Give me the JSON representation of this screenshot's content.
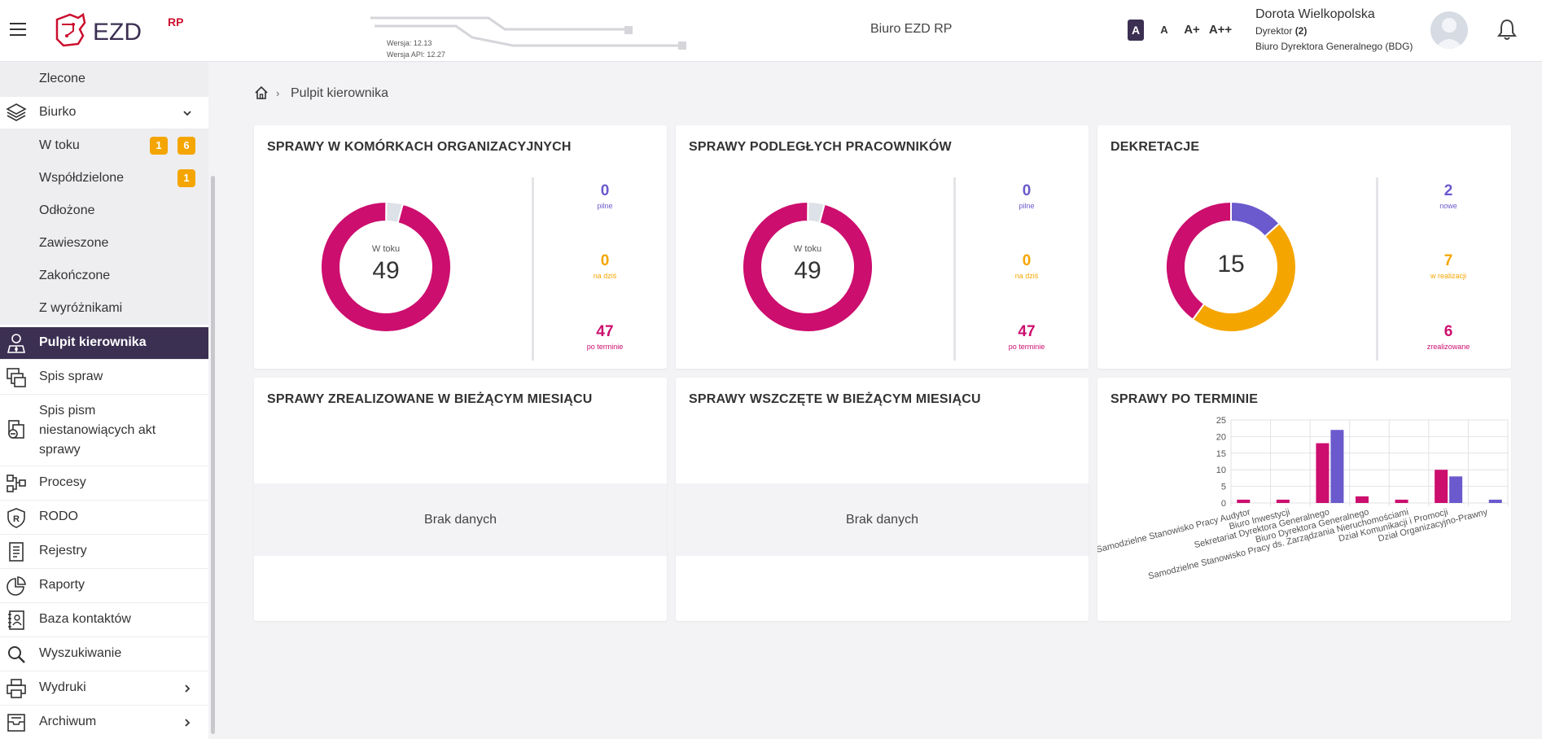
{
  "header": {
    "app_title": "Biuro EZD RP",
    "logo_text": "EZD",
    "logo_sup": "RP",
    "version": "Wersja: 12.13",
    "api_version": "Wersja API: 12.27",
    "font_sizes": [
      "A",
      "A",
      "A+",
      "A++"
    ],
    "user": {
      "name": "Dorota Wielkopolska",
      "role_prefix": "Dyrektor ",
      "role_count": "(2)",
      "department": "Biuro Dyrektora Generalnego (BDG)"
    }
  },
  "sidebar": {
    "zlecone": "Zlecone",
    "biurko": "Biurko",
    "sub_items": [
      {
        "label": "W toku",
        "badges": [
          "1",
          "6"
        ]
      },
      {
        "label": "Współdzielone",
        "badges": [
          "1"
        ]
      },
      {
        "label": "Odłożone"
      },
      {
        "label": "Zawieszone"
      },
      {
        "label": "Zakończone"
      },
      {
        "label": "Z wyróżnikami"
      }
    ],
    "items": [
      {
        "label": "Pulpit kierownika",
        "icon": "manager-icon"
      },
      {
        "label": "Spis spraw",
        "icon": "cases-list-icon"
      },
      {
        "label": "Spis pism niestanowiących akt sprawy",
        "icon": "documents-icon"
      },
      {
        "label": "Procesy",
        "icon": "process-icon"
      },
      {
        "label": "RODO",
        "icon": "rodo-shield-icon"
      },
      {
        "label": "Rejestry",
        "icon": "registry-icon"
      },
      {
        "label": "Raporty",
        "icon": "pie-chart-icon"
      },
      {
        "label": "Baza kontaktów",
        "icon": "contacts-book-icon"
      },
      {
        "label": "Wyszukiwanie",
        "icon": "search-icon"
      },
      {
        "label": "Wydruki",
        "icon": "printer-icon"
      },
      {
        "label": "Archiwum",
        "icon": "archive-icon"
      }
    ]
  },
  "breadcrumb": {
    "current": "Pulpit kierownika"
  },
  "cards": {
    "org_units": {
      "title": "SPRAWY W KOMÓRKACH ORGANIZACYJNYCH",
      "center_label": "W toku",
      "center_value": "49",
      "stats": [
        {
          "value": "0",
          "label": "pilne",
          "color": "#6a5acd"
        },
        {
          "value": "0",
          "label": "na dziś",
          "color": "#f5a500"
        },
        {
          "value": "47",
          "label": "po terminie",
          "color": "#cc0e6e"
        }
      ]
    },
    "subordinates": {
      "title": "SPRAWY PODLEGŁYCH PRACOWNIKÓW",
      "center_label": "W toku",
      "center_value": "49",
      "stats": [
        {
          "value": "0",
          "label": "pilne",
          "color": "#6a5acd"
        },
        {
          "value": "0",
          "label": "na dziś",
          "color": "#f5a500"
        },
        {
          "value": "47",
          "label": "po terminie",
          "color": "#cc0e6e"
        }
      ]
    },
    "decrees": {
      "title": "DEKRETACJE",
      "center_value": "15",
      "stats": [
        {
          "value": "2",
          "label": "nowe",
          "color": "#6a5acd"
        },
        {
          "value": "7",
          "label": "w realizacji",
          "color": "#f5a500"
        },
        {
          "value": "6",
          "label": "zrealizowane",
          "color": "#cc0e6e"
        }
      ]
    },
    "realized": {
      "title": "SPRAWY ZREALIZOWANE W BIEŻĄCYM MIESIĄCU",
      "empty": "Brak danych"
    },
    "started": {
      "title": "SPRAWY WSZCZĘTE W BIEŻĄCYM MIESIĄCU",
      "empty": "Brak danych"
    },
    "overdue": {
      "title": "SPRAWY PO TERMINIE"
    }
  },
  "colors": {
    "magenta": "#cc0e6e",
    "purple": "#6a5acd",
    "orange": "#f5a500",
    "sidebar_active": "#3b2f52"
  },
  "chart_data": [
    {
      "type": "pie",
      "name": "org_units",
      "slices": [
        {
          "label": "po terminie",
          "value": 47
        },
        {
          "label": "other",
          "value": 2
        }
      ]
    },
    {
      "type": "pie",
      "name": "subordinates",
      "slices": [
        {
          "label": "po terminie",
          "value": 47
        },
        {
          "label": "other",
          "value": 2
        }
      ]
    },
    {
      "type": "pie",
      "name": "decrees",
      "slices": [
        {
          "label": "nowe",
          "value": 2
        },
        {
          "label": "w realizacji",
          "value": 7
        },
        {
          "label": "zrealizowane",
          "value": 6
        }
      ]
    },
    {
      "type": "bar",
      "title": "SPRAWY PO TERMINIE",
      "ylim": [
        0,
        25
      ],
      "yticks": [
        0,
        5,
        10,
        15,
        20,
        25
      ],
      "grid": true,
      "categories": [
        "Samodzielne Stanowisko Pracy Audytor",
        "Biuro Inwestycji",
        "Sekretariat Dyrektora Generalnego",
        "Biuro Dyrektora Generalnego",
        "Samodzielne Stanowisko Pracy ds. Zarządzania Nieruchomościami",
        "Dział Komunikacji i Promocji",
        "Dział Organizacyjno-Prawny"
      ],
      "series": [
        {
          "values": [
            1,
            1,
            18,
            2,
            1,
            10,
            0
          ],
          "color": "#cc0e6e"
        },
        {
          "values": [
            0,
            0,
            22,
            0,
            0,
            8,
            1
          ],
          "color": "#6a5acd"
        }
      ]
    }
  ]
}
